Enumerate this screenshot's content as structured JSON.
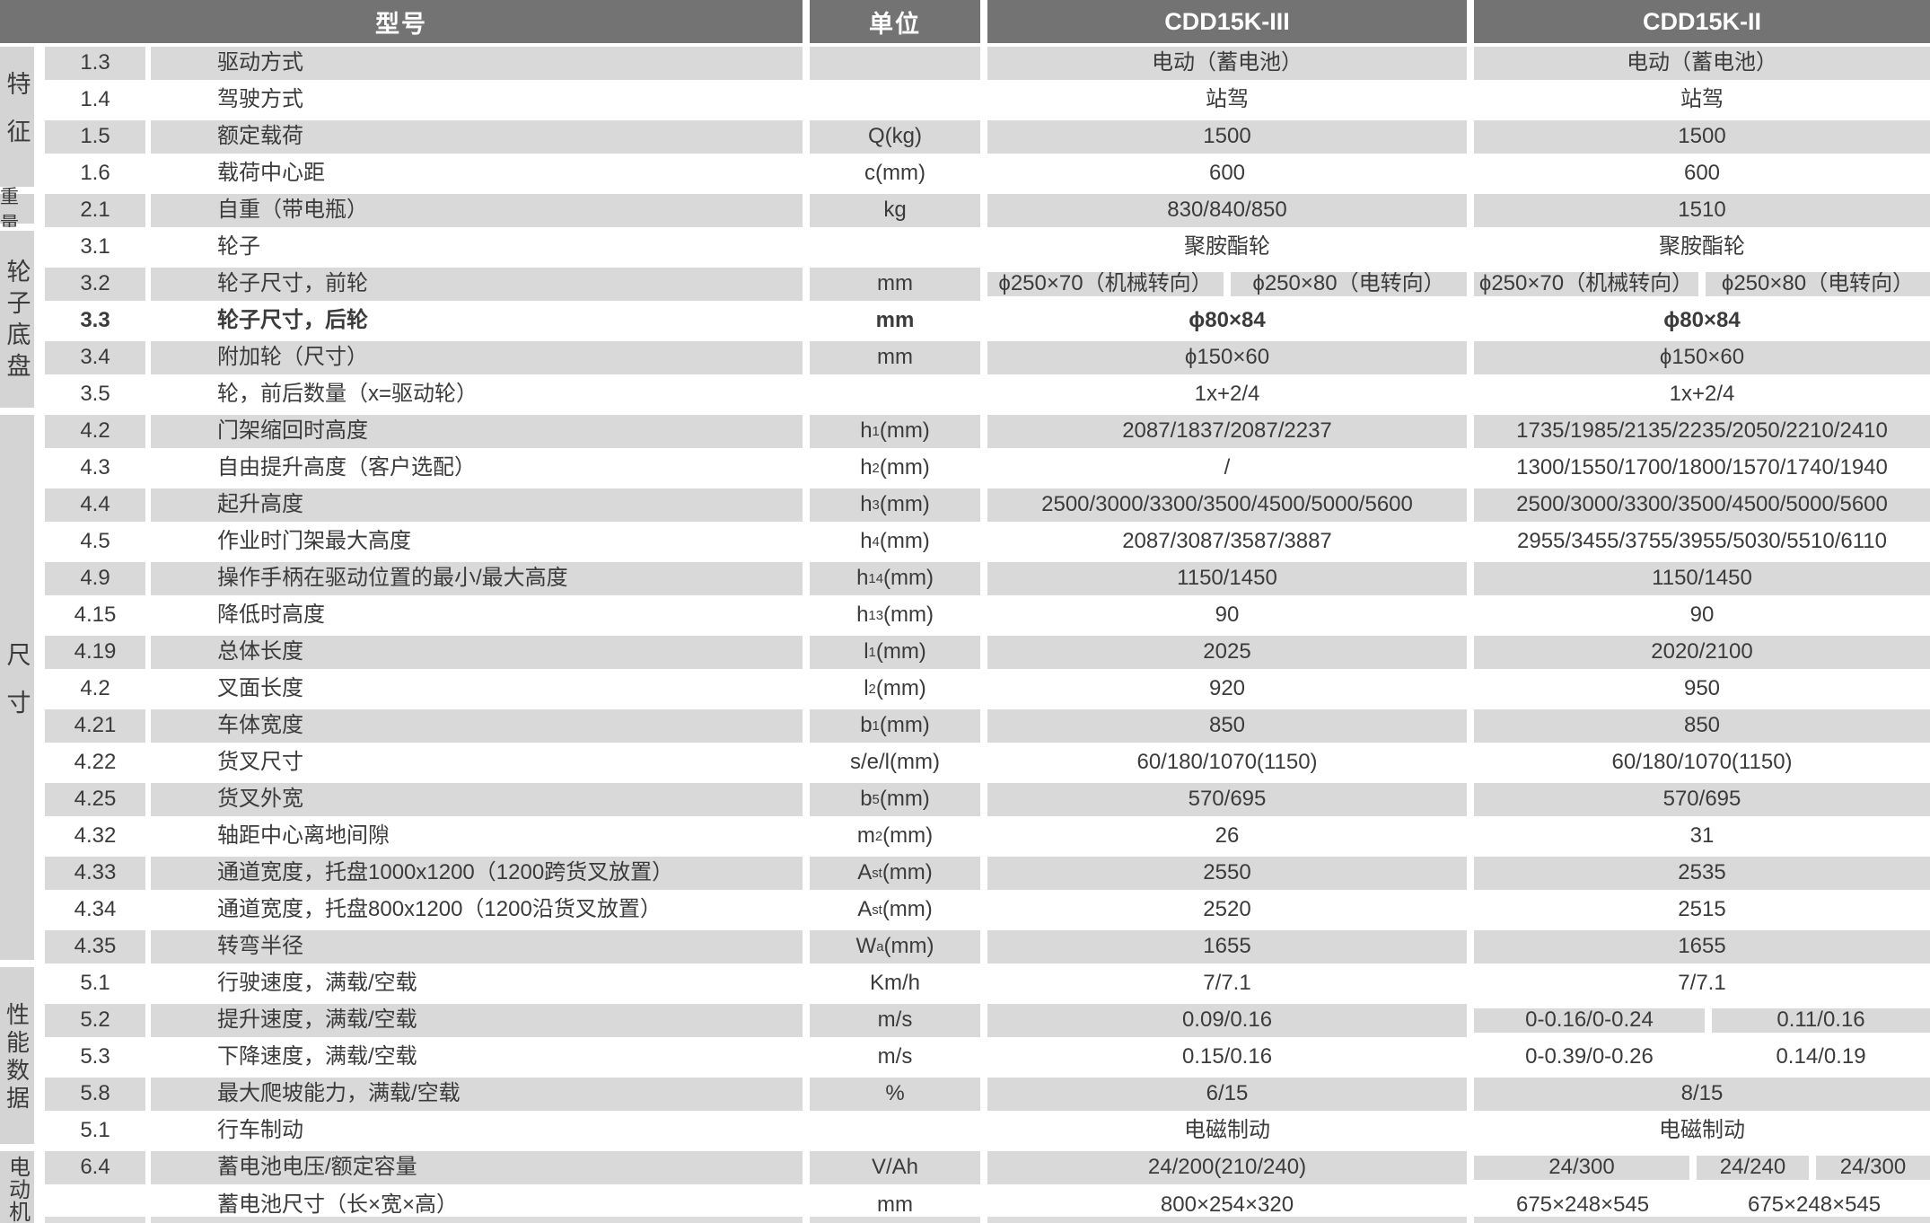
{
  "header": {
    "col_model": "型号",
    "col_unit": "单位",
    "col_m1": "CDD15K-III",
    "col_m2": "CDD15K-II"
  },
  "sidebar_groups": [
    {
      "label": "特征",
      "rows": 4
    },
    {
      "label": "重量",
      "rows": 1
    },
    {
      "label": "轮子底盘",
      "rows": 5
    },
    {
      "label": "尺寸",
      "rows": 15
    },
    {
      "label": "性能数据",
      "rows": 5
    },
    {
      "label": "电动机",
      "rows": 2
    }
  ],
  "rows": [
    {
      "num": "1.3",
      "label": "驱动方式",
      "unit": "",
      "m1": "电动（蓄电池）",
      "m2": "电动（蓄电池）"
    },
    {
      "num": "1.4",
      "label": "驾驶方式",
      "unit": "",
      "m1": "站驾",
      "m2": "站驾"
    },
    {
      "num": "1.5",
      "label": "额定载荷",
      "unit": "Q(kg)",
      "m1": "1500",
      "m2": "1500"
    },
    {
      "num": "1.6",
      "label": "载荷中心距",
      "unit": "c(mm)",
      "m1": "600",
      "m2": "600"
    },
    {
      "num": "2.1",
      "label": "自重（带电瓶）",
      "unit": "kg",
      "m1": "830/840/850",
      "m2": "1510"
    },
    {
      "num": "3.1",
      "label": "轮子",
      "unit": "",
      "m1": "聚胺酯轮",
      "m2": "聚胺酯轮"
    },
    {
      "num": "3.2",
      "label": "轮子尺寸，前轮",
      "unit": "mm",
      "m1": [
        "ϕ250×70（机械转向）",
        "ϕ250×80（电转向）"
      ],
      "m2": [
        "ϕ250×70（机械转向）",
        "ϕ250×80（电转向）"
      ]
    },
    {
      "num": "3.3",
      "label": "轮子尺寸，后轮",
      "unit": "mm",
      "m1": "ϕ80×84",
      "m2": "ϕ80×84",
      "bold": true
    },
    {
      "num": "3.4",
      "label": "附加轮（尺寸）",
      "unit": "mm",
      "m1": "ϕ150×60",
      "m2": "ϕ150×60"
    },
    {
      "num": "3.5",
      "label": "轮，前后数量（x=驱动轮）",
      "unit": "",
      "m1": "1x+2/4",
      "m2": "1x+2/4"
    },
    {
      "num": "4.2",
      "label": "门架缩回时高度",
      "unit": "h~1~(mm)",
      "m1": "2087/1837/2087/2237",
      "m2": "1735/1985/2135/2235/2050/2210/2410"
    },
    {
      "num": "4.3",
      "label": "自由提升高度（客户选配）",
      "unit": "h~2~(mm)",
      "m1": "/",
      "m2": "1300/1550/1700/1800/1570/1740/1940"
    },
    {
      "num": "4.4",
      "label": "起升高度",
      "unit": "h~3~(mm)",
      "m1": "2500/3000/3300/3500/4500/5000/5600",
      "m2": "2500/3000/3300/3500/4500/5000/5600"
    },
    {
      "num": "4.5",
      "label": "作业时门架最大高度",
      "unit": "h~4~(mm)",
      "m1": "2087/3087/3587/3887",
      "m2": "2955/3455/3755/3955/5030/5510/6110"
    },
    {
      "num": "4.9",
      "label": "操作手柄在驱动位置的最小/最大高度",
      "unit": "h~14~(mm)",
      "m1": "1150/1450",
      "m2": "1150/1450"
    },
    {
      "num": "4.15",
      "label": "降低时高度",
      "unit": "h~13~(mm)",
      "m1": "90",
      "m2": "90"
    },
    {
      "num": "4.19",
      "label": "总体长度",
      "unit": "l~1~(mm)",
      "m1": "2025",
      "m2": "2020/2100"
    },
    {
      "num": "4.2",
      "label": "叉面长度",
      "unit": "l~2~(mm)",
      "m1": "920",
      "m2": "950"
    },
    {
      "num": "4.21",
      "label": "车体宽度",
      "unit": "b~1~(mm)",
      "m1": "850",
      "m2": "850"
    },
    {
      "num": "4.22",
      "label": "货叉尺寸",
      "unit": "s/e/l(mm)",
      "m1": "60/180/1070(1150)",
      "m2": "60/180/1070(1150)"
    },
    {
      "num": "4.25",
      "label": "货叉外宽",
      "unit": "b~5~(mm)",
      "m1": "570/695",
      "m2": "570/695"
    },
    {
      "num": "4.32",
      "label": "轴距中心离地间隙",
      "unit": "m~2~(mm)",
      "m1": "26",
      "m2": "31"
    },
    {
      "num": "4.33",
      "label": "通道宽度，托盘1000x1200（1200跨货叉放置）",
      "unit": "A~st~(mm)",
      "m1": "2550",
      "m2": "2535"
    },
    {
      "num": "4.34",
      "label": "通道宽度，托盘800x1200（1200沿货叉放置）",
      "unit": "A~st~(mm)",
      "m1": "2520",
      "m2": "2515"
    },
    {
      "num": "4.35",
      "label": "转弯半径",
      "unit": "W~a~(mm)",
      "m1": "1655",
      "m2": "1655"
    },
    {
      "num": "5.1",
      "label": "行驶速度，满载/空载",
      "unit": "Km/h",
      "m1": "7/7.1",
      "m2": "7/7.1"
    },
    {
      "num": "5.2",
      "label": "提升速度，满载/空载",
      "unit": "m/s",
      "m1": "0.09/0.16",
      "m2": [
        "0-0.16/0-0.24",
        "0.11/0.16"
      ],
      "m2_flex": [
        257,
        243
      ]
    },
    {
      "num": "5.3",
      "label": "下降速度，满载/空载",
      "unit": "m/s",
      "m1": "0.15/0.16",
      "m2": [
        "0-0.39/0-0.26",
        "0.14/0.19"
      ],
      "m2_flex": [
        257,
        243
      ]
    },
    {
      "num": "5.8",
      "label": "最大爬坡能力，满载/空载",
      "unit": "%",
      "m1": "6/15",
      "m2": "8/15"
    },
    {
      "num": "5.1",
      "label": "行车制动",
      "unit": "",
      "m1": "电磁制动",
      "m2": "电磁制动"
    },
    {
      "num": "6.4",
      "label": "蓄电池电压/额定容量",
      "unit": "V/Ah",
      "m1": "24/200(210/240)",
      "m2": [
        "24/300",
        "24/240",
        "24/300"
      ],
      "m2_flex": [
        240,
        125,
        127
      ]
    },
    {
      "num": "",
      "label": "蓄电池尺寸（长×宽×高）",
      "unit": "mm",
      "m1": "800×254×320",
      "m2": [
        "675×248×545",
        "675×248×545"
      ],
      "m2_flex": [
        246,
        262
      ]
    }
  ],
  "colors": {
    "header_bg": "#737373",
    "header_text": "#ffffff",
    "stripe": "#d9d9d9",
    "sidebar_block": "#d4d4d4",
    "text": "#3b3b3b"
  }
}
